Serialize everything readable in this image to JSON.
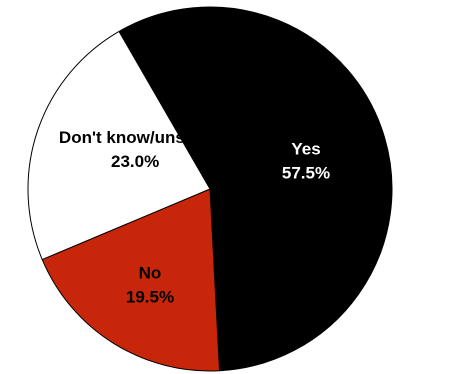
{
  "chart_data": {
    "type": "pie",
    "title": "",
    "slices": [
      {
        "label": "Yes",
        "value": 57.5,
        "value_label": "57.5%",
        "color": "#000000",
        "text_color": "#ffffff"
      },
      {
        "label": "No",
        "value": 19.5,
        "value_label": "19.5%",
        "color": "#c8260a",
        "text_color": "#000000"
      },
      {
        "label": "Don't know/unsure",
        "value": 23.0,
        "value_label": "23.0%",
        "color": "#ffffff",
        "text_color": "#000000"
      }
    ],
    "start_angle_deg": -120,
    "direction": "clockwise",
    "stroke_color": "#000000"
  }
}
